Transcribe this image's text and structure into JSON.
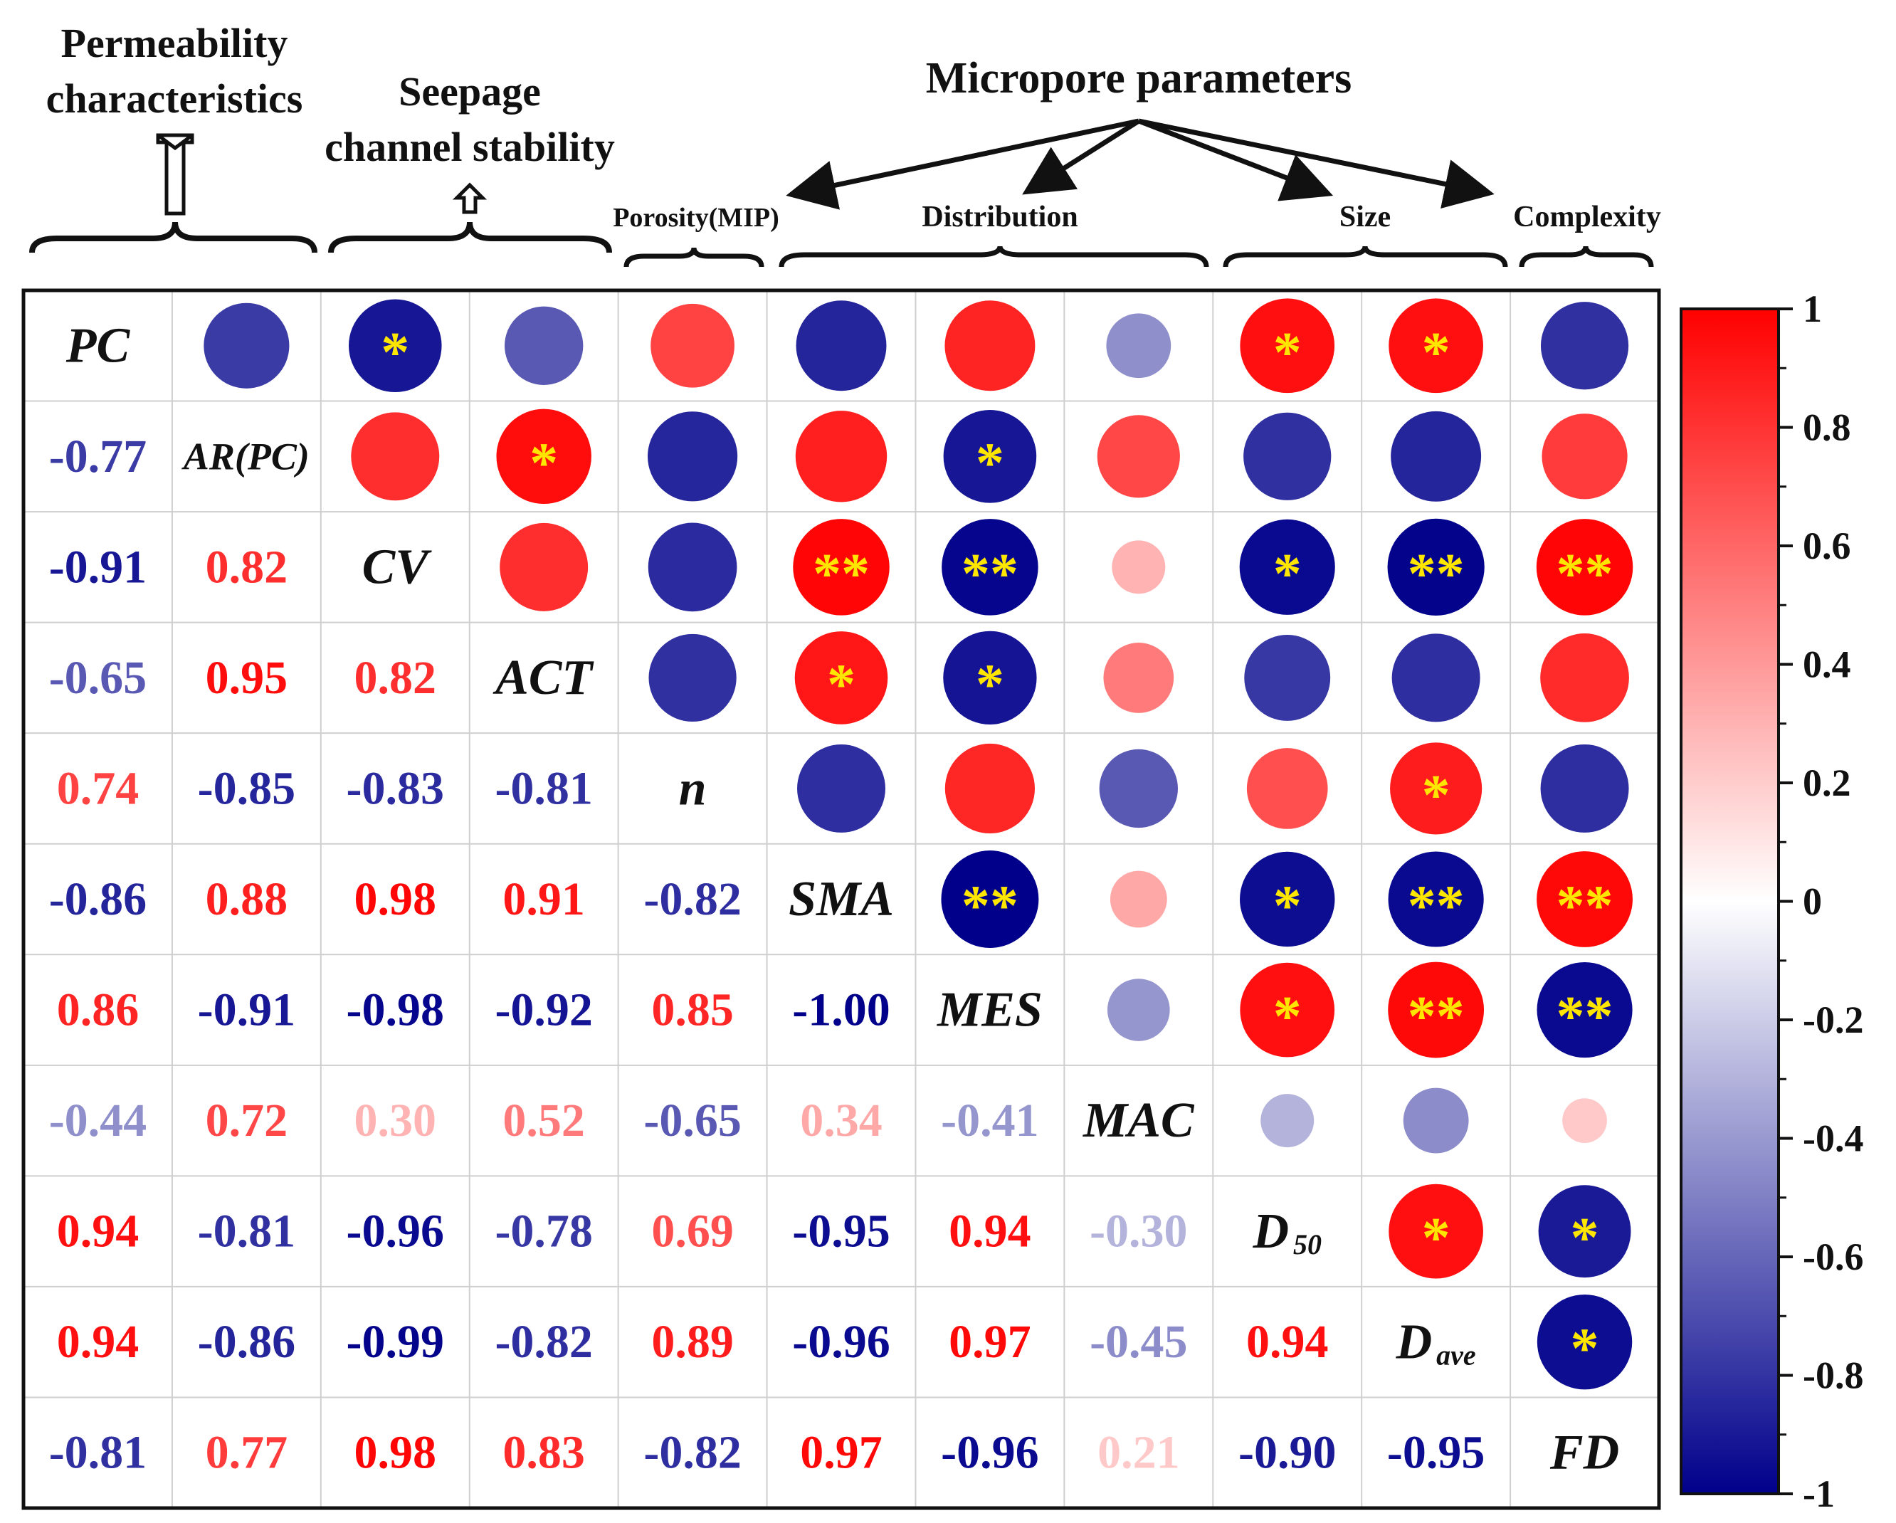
{
  "chart_data": {
    "type": "heatmap",
    "subtype": "correlation-matrix",
    "variables": [
      "PC",
      "AR(PC)",
      "CV",
      "ACT",
      "n",
      "SMA",
      "MES",
      "MAC",
      "D50",
      "Dave",
      "FD"
    ],
    "diagonal_labels": [
      {
        "main": "PC",
        "sub": ""
      },
      {
        "main": "AR(PC)",
        "sub": ""
      },
      {
        "main": "CV",
        "sub": ""
      },
      {
        "main": "ACT",
        "sub": ""
      },
      {
        "main": "n",
        "sub": ""
      },
      {
        "main": "SMA",
        "sub": ""
      },
      {
        "main": "MES",
        "sub": ""
      },
      {
        "main": "MAC",
        "sub": ""
      },
      {
        "main": "D",
        "sub": "50"
      },
      {
        "main": "D",
        "sub": "ave"
      },
      {
        "main": "FD",
        "sub": ""
      }
    ],
    "matrix": [
      [
        1,
        -0.77,
        -0.91,
        -0.65,
        0.74,
        -0.86,
        0.86,
        -0.44,
        0.94,
        0.94,
        -0.81
      ],
      [
        -0.77,
        1,
        0.82,
        0.95,
        -0.85,
        0.88,
        -0.91,
        0.72,
        -0.81,
        -0.86,
        0.77
      ],
      [
        -0.91,
        0.82,
        1,
        0.82,
        -0.83,
        0.98,
        -0.98,
        0.3,
        -0.96,
        -0.99,
        0.98
      ],
      [
        -0.65,
        0.95,
        0.82,
        1,
        -0.81,
        0.91,
        -0.92,
        0.52,
        -0.78,
        -0.82,
        0.83
      ],
      [
        0.74,
        -0.85,
        -0.83,
        -0.81,
        1,
        -0.82,
        0.85,
        -0.65,
        0.69,
        0.89,
        -0.82
      ],
      [
        -0.86,
        0.88,
        0.98,
        0.91,
        -0.82,
        1,
        -1.0,
        0.34,
        -0.95,
        -0.96,
        0.97
      ],
      [
        0.86,
        -0.91,
        -0.98,
        -0.92,
        0.85,
        -1.0,
        1,
        -0.41,
        0.94,
        0.97,
        -0.96
      ],
      [
        -0.44,
        0.72,
        0.3,
        0.52,
        -0.65,
        0.34,
        -0.41,
        1,
        -0.3,
        -0.45,
        0.21
      ],
      [
        0.94,
        -0.81,
        -0.96,
        -0.78,
        0.69,
        -0.95,
        0.94,
        -0.3,
        1,
        0.94,
        -0.9
      ],
      [
        0.94,
        -0.86,
        -0.99,
        -0.82,
        0.89,
        -0.96,
        0.97,
        -0.45,
        0.94,
        1,
        -0.95
      ],
      [
        -0.81,
        0.77,
        0.98,
        0.83,
        -0.82,
        0.97,
        -0.96,
        0.21,
        -0.9,
        -0.95,
        1
      ]
    ],
    "value_labels": [
      [
        null,
        null,
        null,
        null,
        null,
        null,
        null,
        null,
        null,
        null,
        null
      ],
      [
        "-0.77",
        null,
        null,
        null,
        null,
        null,
        null,
        null,
        null,
        null,
        null
      ],
      [
        "-0.91",
        "0.82",
        null,
        null,
        null,
        null,
        null,
        null,
        null,
        null,
        null
      ],
      [
        "-0.65",
        "0.95",
        "0.82",
        null,
        null,
        null,
        null,
        null,
        null,
        null,
        null
      ],
      [
        "0.74",
        "-0.85",
        "-0.83",
        "-0.81",
        null,
        null,
        null,
        null,
        null,
        null,
        null
      ],
      [
        "-0.86",
        "0.88",
        "0.98",
        "0.91",
        "-0.82",
        null,
        null,
        null,
        null,
        null,
        null
      ],
      [
        "0.86",
        "-0.91",
        "-0.98",
        "-0.92",
        "0.85",
        "-1.00",
        null,
        null,
        null,
        null,
        null
      ],
      [
        "-0.44",
        "0.72",
        "0.30",
        "0.52",
        "-0.65",
        "0.34",
        "-0.41",
        null,
        null,
        null,
        null
      ],
      [
        "0.94",
        "-0.81",
        "-0.96",
        "-0.78",
        "0.69",
        "-0.95",
        "0.94",
        "-0.30",
        null,
        null,
        null
      ],
      [
        "0.94",
        "-0.86",
        "-0.99",
        "-0.82",
        "0.89",
        "-0.96",
        "0.97",
        "-0.45",
        "0.94",
        null,
        null
      ],
      [
        "-0.81",
        "0.77",
        "0.98",
        "0.83",
        "-0.82",
        "0.97",
        "-0.96",
        "0.21",
        "-0.90",
        "-0.95",
        null
      ]
    ],
    "significance": [
      [
        "",
        "",
        "*",
        "",
        "",
        "",
        "",
        "",
        "*",
        "*",
        ""
      ],
      [
        "",
        "",
        "",
        "*",
        "",
        "",
        "*",
        "",
        "",
        "",
        ""
      ],
      [
        "",
        "",
        "",
        "",
        "",
        "**",
        "**",
        "",
        "*",
        "**",
        "**"
      ],
      [
        "",
        "",
        "",
        "",
        "",
        "*",
        "*",
        "",
        "",
        "",
        ""
      ],
      [
        "",
        "",
        "",
        "",
        "",
        "",
        "",
        "",
        "",
        "*",
        ""
      ],
      [
        "",
        "",
        "",
        "",
        "",
        "",
        "**",
        "",
        "*",
        "**",
        "**"
      ],
      [
        "",
        "",
        "",
        "",
        "",
        "",
        "",
        "",
        "*",
        "**",
        "**"
      ],
      [
        "",
        "",
        "",
        "",
        "",
        "",
        "",
        "",
        "",
        "",
        ""
      ],
      [
        "",
        "",
        "",
        "",
        "",
        "",
        "",
        "",
        "",
        "*",
        "*"
      ],
      [
        "",
        "",
        "",
        "",
        "",
        "",
        "",
        "",
        "",
        "",
        "*"
      ],
      [
        "",
        "",
        "",
        "",
        "",
        "",
        "",
        "",
        "",
        "",
        ""
      ]
    ],
    "groups": [
      {
        "label": "Permeability characteristics",
        "lines": [
          "Permeability",
          "characteristics"
        ]
      },
      {
        "label": "Seepage channel stability",
        "lines": [
          "Seepage",
          "channel stability"
        ]
      },
      {
        "label": "Micropore parameters",
        "lines": [
          "Micropore parameters"
        ]
      }
    ],
    "subgroups": [
      "Porosity(MIP)",
      "Distribution",
      "Size",
      "Complexity"
    ],
    "colorbar": {
      "ticks": [
        "1",
        "0.8",
        "0.6",
        "0.4",
        "0.2",
        "0",
        "-0.2",
        "-0.4",
        "-0.6",
        "-0.8",
        "-1"
      ],
      "range": [
        -1,
        1
      ],
      "colors": {
        "positive": "#ff0000",
        "zero": "#ffffff",
        "negative": "#00008b"
      }
    }
  }
}
